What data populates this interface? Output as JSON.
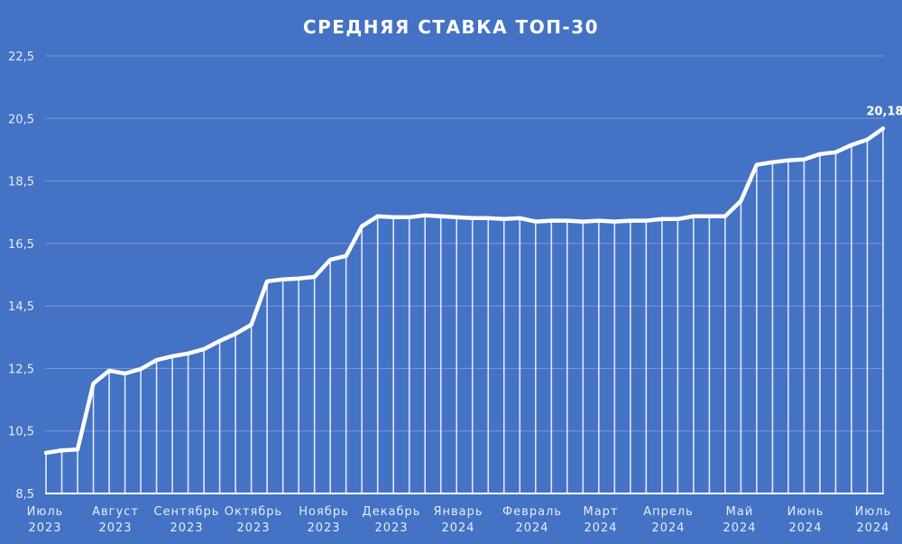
{
  "chart_data": {
    "type": "line",
    "title": "СРЕДНЯЯ СТАВКА ТОП-30",
    "xlabel": "",
    "ylabel": "",
    "ylim": [
      8.5,
      22.5
    ],
    "yticks": [
      "8,5",
      "10,5",
      "12,5",
      "14,5",
      "16,5",
      "18,5",
      "20,5",
      "22,5"
    ],
    "grid": true,
    "legend": null,
    "x_month_labels": [
      {
        "month": "Июль",
        "year": "2023"
      },
      {
        "month": "Август",
        "year": "2023"
      },
      {
        "month": "Сентябрь",
        "year": "2023"
      },
      {
        "month": "Октябрь",
        "year": "2023"
      },
      {
        "month": "Ноябрь",
        "year": "2023"
      },
      {
        "month": "Декабрь",
        "year": "2023"
      },
      {
        "month": "Январь",
        "year": "2024"
      },
      {
        "month": "Февраль",
        "year": "2024"
      },
      {
        "month": "Март",
        "year": "2024"
      },
      {
        "month": "Апрель",
        "year": "2024"
      },
      {
        "month": "Май",
        "year": "2024"
      },
      {
        "month": "Июнь",
        "year": "2024"
      },
      {
        "month": "Июль",
        "year": "2024"
      }
    ],
    "series": [
      {
        "name": "Средняя ставка ТОП-30",
        "values": [
          9.8,
          9.88,
          9.91,
          12.02,
          12.43,
          12.34,
          12.48,
          12.77,
          12.89,
          12.98,
          13.12,
          13.38,
          13.61,
          13.9,
          15.29,
          15.35,
          15.38,
          15.43,
          15.98,
          16.1,
          17.05,
          17.37,
          17.34,
          17.34,
          17.4,
          17.37,
          17.34,
          17.31,
          17.31,
          17.28,
          17.31,
          17.2,
          17.23,
          17.23,
          17.2,
          17.23,
          17.2,
          17.23,
          17.23,
          17.28,
          17.28,
          17.37,
          17.37,
          17.37,
          17.86,
          19.02,
          19.1,
          19.16,
          19.19,
          19.36,
          19.42,
          19.65,
          19.82,
          20.18
        ]
      }
    ],
    "annotations": [
      {
        "text": "20,18",
        "point_index": 53
      }
    ]
  }
}
